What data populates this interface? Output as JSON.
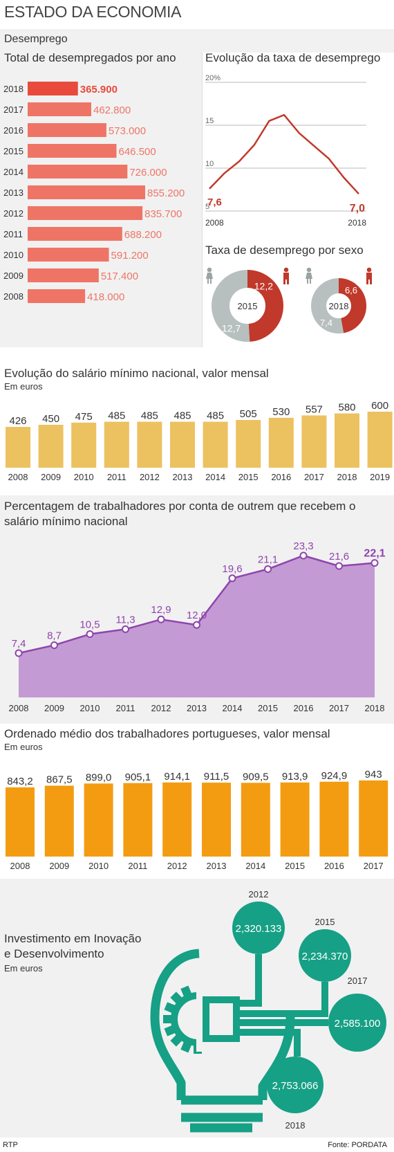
{
  "page_title": "ESTADO DA ECONOMIA",
  "unemployment": {
    "section_label": "Desemprego",
    "total_title": "Total de desempregados por ano",
    "rate_title": "Evolução da taxa de desemprego",
    "sex_title": "Taxa de desemprego por sexo",
    "highlight_color": "#e84a3c",
    "bar_color": "#ee7566",
    "total_chart": {
      "type": "bar",
      "orientation": "horizontal",
      "categories": [
        "2018",
        "2017",
        "2016",
        "2015",
        "2014",
        "2013",
        "2012",
        "2011",
        "2010",
        "2009",
        "2008"
      ],
      "labels": [
        "365.900",
        "462.800",
        "573.000",
        "646.500",
        "726.000",
        "855.200",
        "835.700",
        "688.200",
        "591.200",
        "517.400",
        "418.000"
      ],
      "values": [
        365900,
        462800,
        573000,
        646500,
        726000,
        855200,
        835700,
        688200,
        591200,
        517400,
        418000
      ]
    },
    "rate_chart": {
      "type": "line",
      "x": [
        2008,
        2009,
        2010,
        2011,
        2012,
        2013,
        2014,
        2015,
        2016,
        2017,
        2018
      ],
      "values": [
        7.6,
        9.4,
        10.8,
        12.7,
        15.5,
        16.2,
        14.1,
        12.6,
        11.1,
        8.9,
        7.0
      ],
      "ylim": [
        5,
        20
      ],
      "yticks": [
        "5",
        "10",
        "15",
        "20%"
      ],
      "start_label": "7,6",
      "end_label": "7,0",
      "x_start_label": "2008",
      "x_end_label": "2018",
      "color": "#c0392b"
    },
    "sex_chart": {
      "type": "pie",
      "colors": {
        "men": "#c0392b",
        "women": "#b8bfbf",
        "female_icon": "#9aa3a3",
        "male_icon": "#c0392b"
      },
      "donuts": [
        {
          "year": "2015",
          "men": 12.2,
          "women": 12.7,
          "men_label": "12,2",
          "women_label": "12,7"
        },
        {
          "year": "2018",
          "men": 6.6,
          "women": 7.4,
          "men_label": "6,6",
          "women_label": "7,4"
        }
      ]
    }
  },
  "min_wage": {
    "title": "Evolução do salário mínimo nacional, valor mensal",
    "unit": "Em euros",
    "color": "#ecc160",
    "chart_data": {
      "type": "bar",
      "categories": [
        "2008",
        "2009",
        "2010",
        "2011",
        "2012",
        "2013",
        "2014",
        "2015",
        "2016",
        "2017",
        "2018",
        "2019"
      ],
      "values": [
        426,
        450,
        475,
        485,
        485,
        485,
        485,
        505,
        530,
        557,
        580,
        600
      ],
      "labels": [
        "426",
        "450",
        "475",
        "485",
        "485",
        "485",
        "485",
        "505",
        "530",
        "557",
        "580",
        "600"
      ]
    }
  },
  "min_wage_pct": {
    "title_line1": "Percentagem de trabalhadores por conta de outrem que recebem o",
    "title_line2": "salário mínimo nacional",
    "fill_color": "#c39ad3",
    "line_color": "#8e44ad",
    "chart_data": {
      "type": "area",
      "categories": [
        "2008",
        "2009",
        "2010",
        "2011",
        "2012",
        "2013",
        "2014",
        "2015",
        "2016",
        "2017",
        "2018"
      ],
      "values": [
        7.4,
        8.7,
        10.5,
        11.3,
        12.9,
        12.0,
        19.6,
        21.1,
        23.3,
        21.6,
        22.1
      ],
      "labels": [
        "7,4",
        "8,7",
        "10,5",
        "11,3",
        "12,9",
        "12,0",
        "19,6",
        "21,1",
        "23,3",
        "21,6",
        "22,1"
      ]
    }
  },
  "avg_wage": {
    "title": "Ordenado médio dos trabalhadores portugueses, valor mensal",
    "unit": "Em euros",
    "color": "#f39c12",
    "chart_data": {
      "type": "bar",
      "categories": [
        "2008",
        "2009",
        "2010",
        "2011",
        "2012",
        "2013",
        "2014",
        "2015",
        "2016",
        "2017"
      ],
      "values": [
        843.2,
        867.5,
        899.0,
        905.1,
        914.1,
        911.5,
        909.5,
        913.9,
        924.9,
        943
      ],
      "labels": [
        "843,2",
        "867,5",
        "899,0",
        "905,1",
        "914,1",
        "911,5",
        "909,5",
        "913,9",
        "924,9",
        "943"
      ]
    }
  },
  "innovation": {
    "title_line1": "Investimento em Inovação",
    "title_line2": "e Desenvolvimento",
    "unit": "Em euros",
    "color": "#16a085",
    "chart_data": {
      "type": "bubble",
      "items": [
        {
          "year": "2012",
          "value": 2320133,
          "label": "2,320.133"
        },
        {
          "year": "2015",
          "value": 2234370,
          "label": "2,234.370"
        },
        {
          "year": "2017",
          "value": 2585100,
          "label": "2,585.100"
        },
        {
          "year": "2018",
          "value": 2753066,
          "label": "2,753.066"
        }
      ]
    }
  },
  "footer": {
    "left": "RTP",
    "right": "Fonte: PORDATA"
  }
}
